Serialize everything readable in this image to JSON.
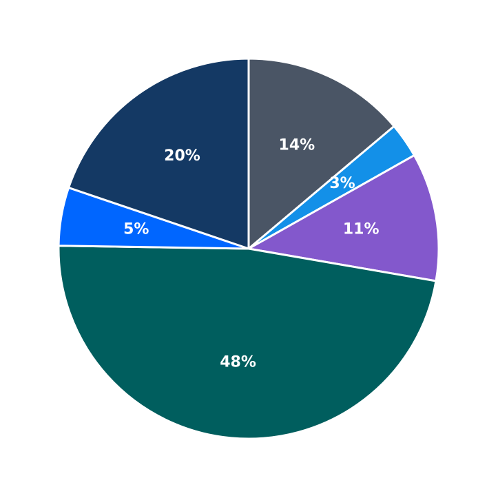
{
  "chart_data": {
    "type": "pie",
    "start_angle_deg": 90,
    "direction": "clockwise",
    "slices": [
      {
        "value": 14,
        "label": "14%",
        "color": "#4a5565"
      },
      {
        "value": 3,
        "label": "3%",
        "color": "#1390e8"
      },
      {
        "value": 11,
        "label": "11%",
        "color": "#8358cc"
      },
      {
        "value": 48,
        "label": "48%",
        "color": "#005e5e"
      },
      {
        "value": 5,
        "label": "5%",
        "color": "#0066ff"
      },
      {
        "value": 20,
        "label": "20%",
        "color": "#143964"
      }
    ],
    "legend": "none"
  }
}
